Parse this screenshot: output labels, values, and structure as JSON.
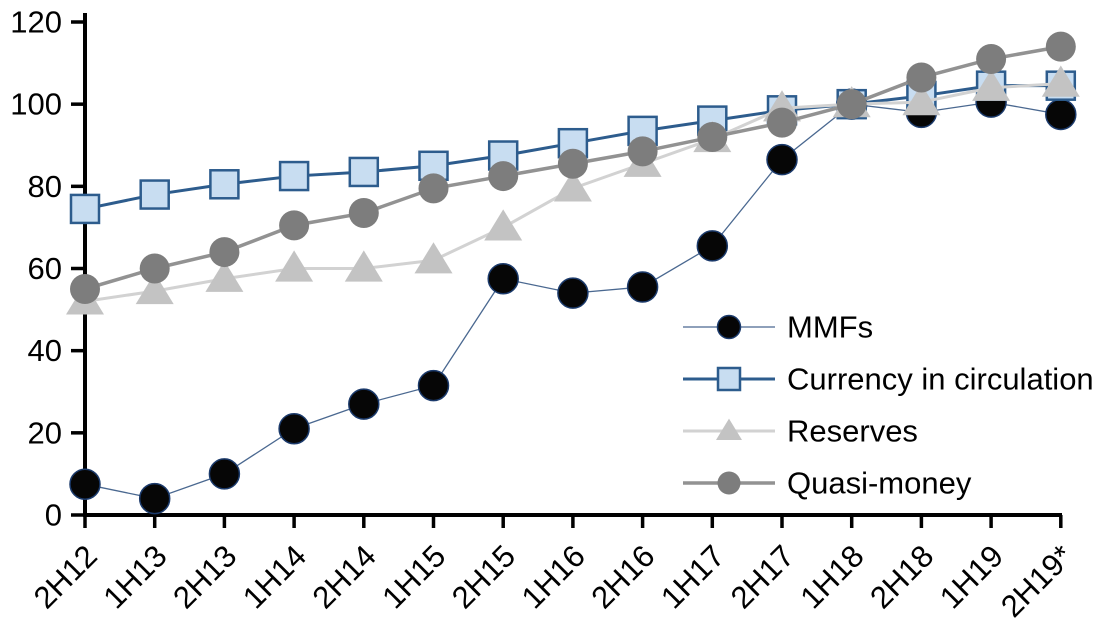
{
  "page": {
    "background": "#ffffff"
  },
  "chart_data": {
    "type": "line",
    "title": "",
    "xlabel": "",
    "ylabel": "",
    "grid": false,
    "categories": [
      "2H12",
      "1H13",
      "2H13",
      "1H14",
      "2H14",
      "1H15",
      "2H15",
      "1H16",
      "2H16",
      "1H17",
      "2H17",
      "1H18",
      "2H18",
      "1H19",
      "2H19*"
    ],
    "y_axis": {
      "min": 0,
      "max": 120,
      "step": 20,
      "tick_labels": [
        "0",
        "20",
        "40",
        "60",
        "80",
        "100",
        "120"
      ],
      "color": "#000000"
    },
    "legend": {
      "position": "inside-right",
      "entries": [
        "MMFs",
        "Currency in circulation",
        "Reserves",
        "Quasi-money"
      ]
    },
    "series": [
      {
        "name": "MMFs",
        "marker": "circle",
        "marker_fill": "#060606",
        "marker_edge": "#1b3a6b",
        "marker_edge_width": 1.5,
        "marker_size": 30,
        "legend_marker_size": 23,
        "line_color": "#4a6890",
        "line_width": 1.3,
        "values": [
          7.5,
          4,
          10,
          21,
          27,
          31.5,
          57.5,
          54,
          55.5,
          65.5,
          86.5,
          100,
          98,
          100.5,
          97.5
        ]
      },
      {
        "name": "Currency in circulation",
        "marker": "square",
        "marker_fill": "#c8ddf1",
        "marker_edge": "#2d5c8d",
        "marker_edge_width": 2.5,
        "marker_size": 28,
        "legend_marker_size": 22,
        "line_color": "#2d5c8d",
        "line_width": 3,
        "values": [
          74.5,
          78,
          80.5,
          82.5,
          83.5,
          85,
          87.5,
          90.5,
          93.5,
          96,
          98.5,
          100,
          102,
          104.5,
          104.5
        ]
      },
      {
        "name": "Reserves",
        "marker": "triangle",
        "marker_fill": "#c3c3c3",
        "marker_edge": "#c3c3c3",
        "marker_edge_width": 0,
        "marker_size": 38,
        "legend_marker_size": 26,
        "line_color": "#d2d2d2",
        "line_width": 3,
        "values": [
          52,
          54.5,
          57.5,
          60,
          60,
          62,
          70,
          79.5,
          85.5,
          91.5,
          99,
          100,
          100.5,
          104,
          105
        ]
      },
      {
        "name": "Quasi-money",
        "marker": "circle",
        "marker_fill": "#7d7d7d",
        "marker_edge": "#7d7d7d",
        "marker_edge_width": 0,
        "marker_size": 30,
        "legend_marker_size": 23,
        "line_color": "#929292",
        "line_width": 3.5,
        "values": [
          55,
          60,
          64,
          70.5,
          73.5,
          79.5,
          82.5,
          85.5,
          88.5,
          92,
          95.5,
          100,
          106.5,
          111,
          114
        ]
      }
    ]
  }
}
